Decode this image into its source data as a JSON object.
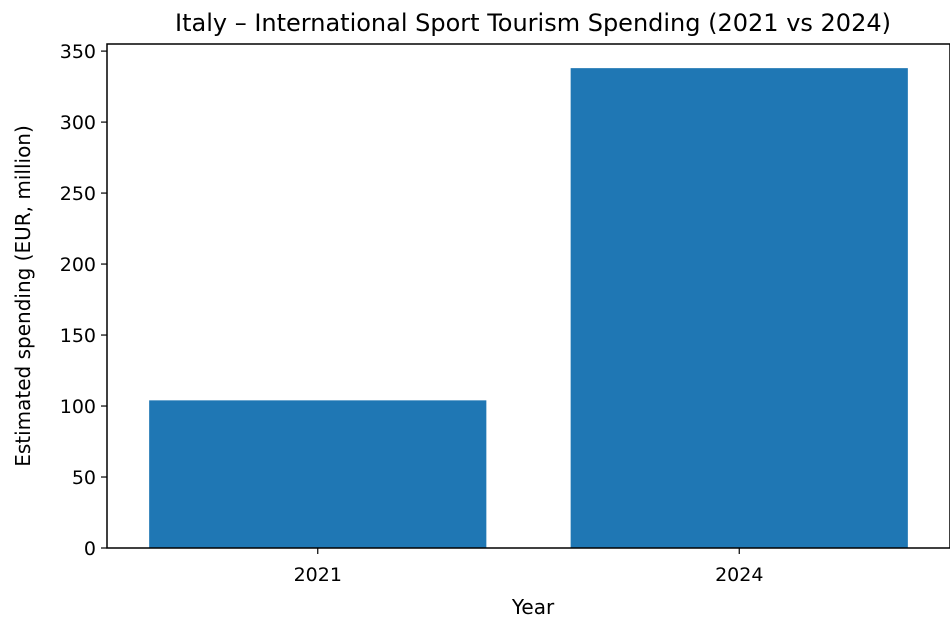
{
  "chart_data": {
    "type": "bar",
    "title": "Italy – International Sport Tourism Spending (2021 vs 2024)",
    "xlabel": "Year",
    "ylabel": "Estimated spending (EUR, million)",
    "categories": [
      "2021",
      "2024"
    ],
    "values": [
      104,
      338
    ],
    "ylim": [
      0,
      355
    ],
    "yticks": [
      0,
      50,
      100,
      150,
      200,
      250,
      300,
      350
    ],
    "bar_color": "#1f77b4",
    "grid": false,
    "legend": "none"
  }
}
